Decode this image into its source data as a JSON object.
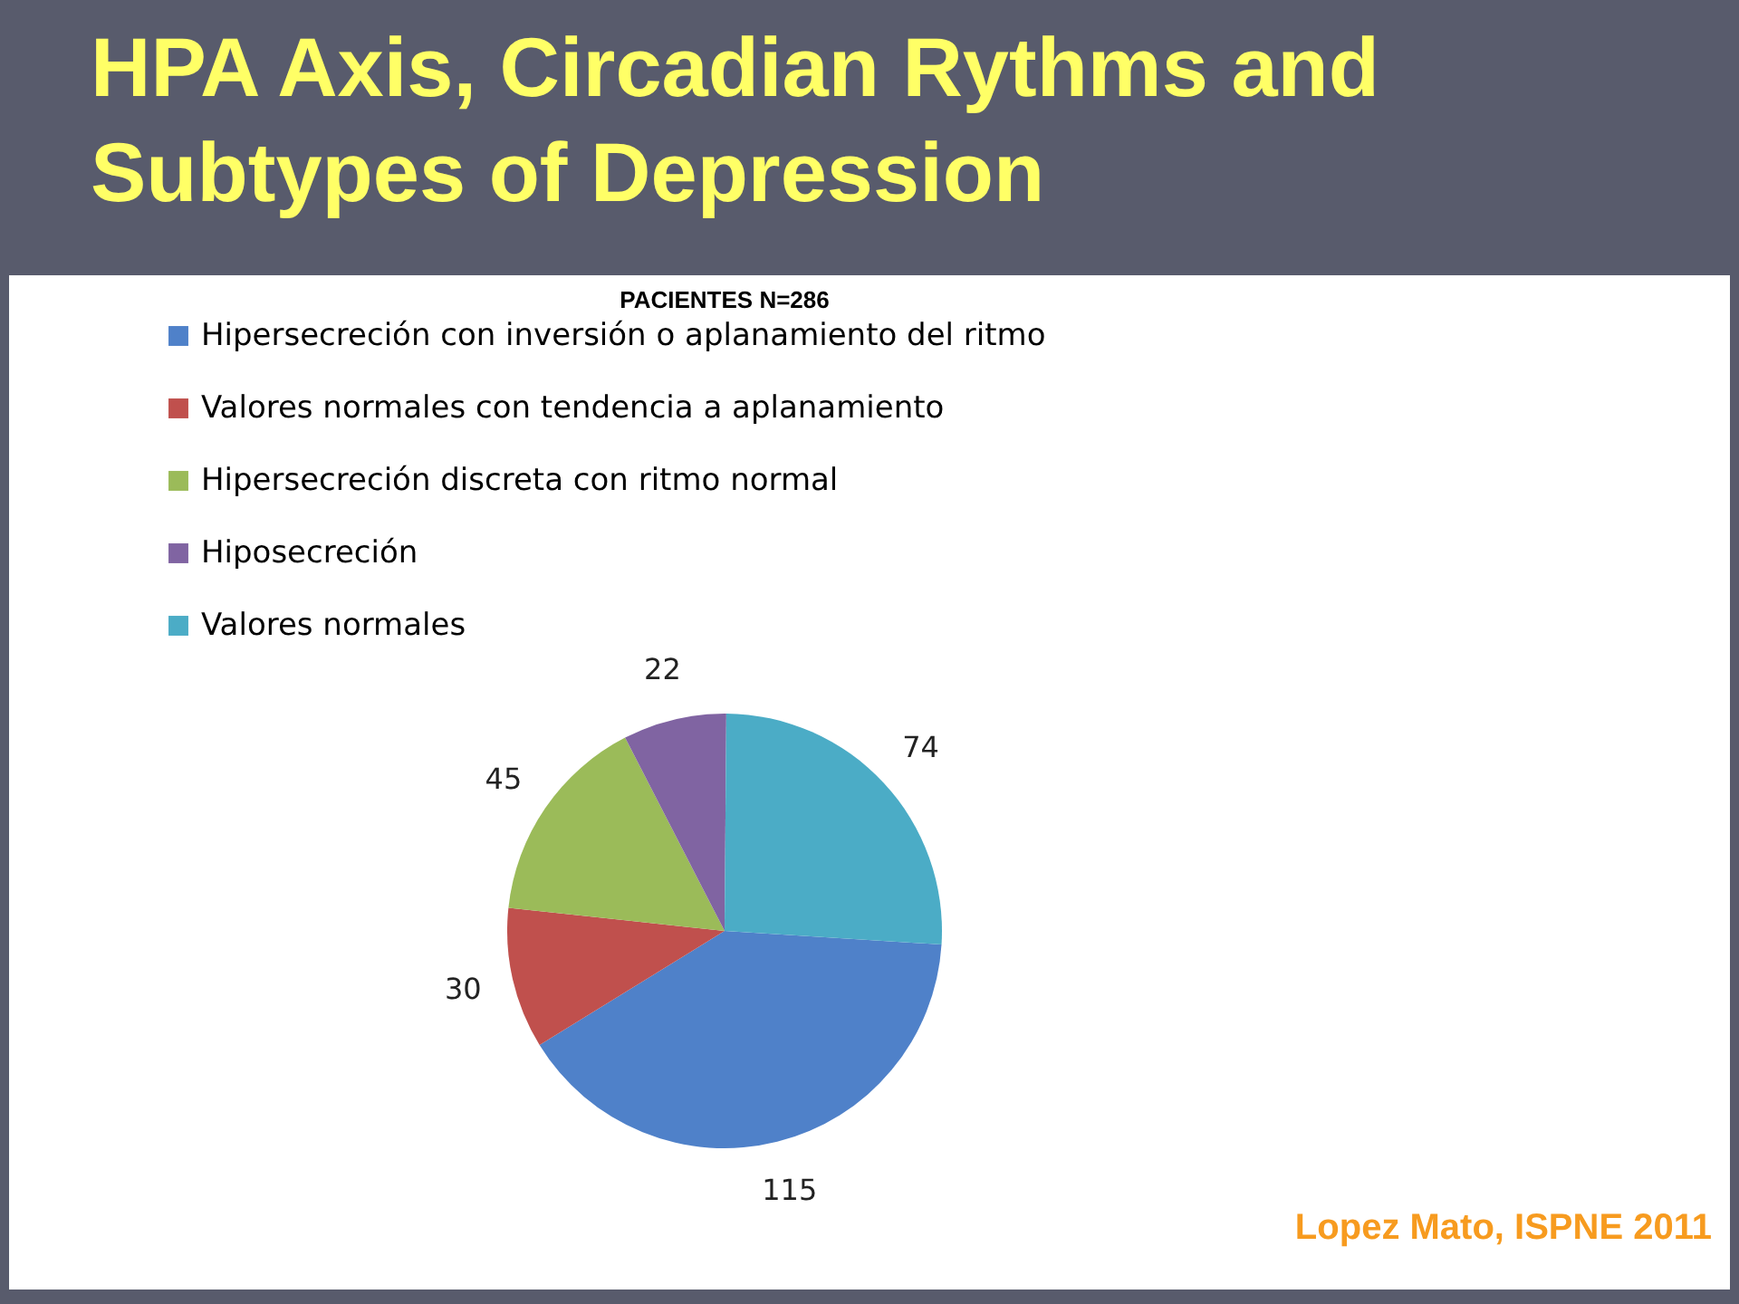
{
  "chart_data": {
    "type": "pie",
    "title": "HPA Axis, Circadian Rythms and Subtypes of Depression",
    "subtitle": "PACIENTES N=286",
    "categories": [
      "Hipersecreción con inversión o aplanamiento del ritmo",
      "Valores normales con tendencia a aplanamiento",
      "Hipersecreción discreta con ritmo normal",
      "Hiposecreción",
      "Valores normales"
    ],
    "values": [
      115,
      30,
      45,
      22,
      74
    ],
    "colors": [
      "#4f81c9",
      "#c0504d",
      "#9bbb59",
      "#8064a2",
      "#4bacc6"
    ],
    "data_labels": true,
    "legend": "top",
    "annotations": [
      "Lopez Mato, ISPNE 2011"
    ]
  }
}
